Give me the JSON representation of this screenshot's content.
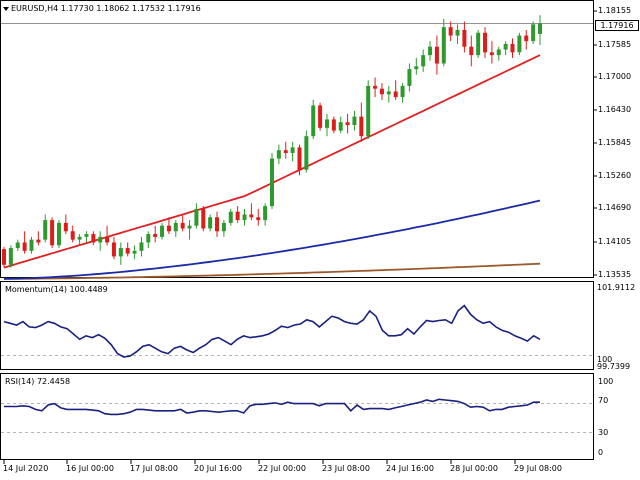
{
  "main": {
    "symbol_header": "EURUSD,H4  1.17730  1.18062  1.17532  1.17916",
    "current_price": "1.17916",
    "y_ticks": [
      "1.18155",
      "1.17585",
      "1.17000",
      "1.16430",
      "1.15845",
      "1.15260",
      "1.14690",
      "1.14105",
      "1.13535"
    ]
  },
  "momentum": {
    "header": "Momentum(14) 100.4489",
    "y_ticks": [
      "101.9112",
      "100",
      "99.7399"
    ]
  },
  "rsi": {
    "header": "RSI(14) 72.4458",
    "y_ticks": [
      "100",
      "70",
      "30",
      "0"
    ]
  },
  "x_ticks": [
    "14 Jul 2020",
    "16 Jul 00:00",
    "17 Jul 08:00",
    "20 Jul 16:00",
    "22 Jul 00:00",
    "23 Jul 08:00",
    "24 Jul 16:00",
    "28 Jul 00:00",
    "29 Jul 08:00"
  ],
  "colors": {
    "bull": "#2e9a2e",
    "bear": "#dd1c1c",
    "ma_fast": "#e02020",
    "ma_slow": "#1a2aa8",
    "ma_long": "#9c5a2c",
    "indicator": "#1a2080",
    "grid": "#888888"
  },
  "chart_data": [
    {
      "type": "candlestick",
      "title": "EURUSD,H4",
      "ylim": [
        1.134,
        1.183
      ],
      "ohlc": [
        [
          1.1388,
          1.1392,
          1.1355,
          1.136
        ],
        [
          1.136,
          1.1395,
          1.1355,
          1.139
        ],
        [
          1.139,
          1.1405,
          1.1385,
          1.14
        ],
        [
          1.14,
          1.142,
          1.138,
          1.1385
        ],
        [
          1.1385,
          1.141,
          1.138,
          1.1405
        ],
        [
          1.1405,
          1.142,
          1.1395,
          1.14
        ],
        [
          1.1405,
          1.145,
          1.14,
          1.144
        ],
        [
          1.144,
          1.1445,
          1.139,
          1.1395
        ],
        [
          1.1395,
          1.144,
          1.139,
          1.1435
        ],
        [
          1.1435,
          1.145,
          1.1415,
          1.142
        ],
        [
          1.142,
          1.143,
          1.14,
          1.1405
        ],
        [
          1.1405,
          1.1415,
          1.1395,
          1.141
        ],
        [
          1.141,
          1.142,
          1.14,
          1.1415
        ],
        [
          1.1415,
          1.142,
          1.1395,
          1.14
        ],
        [
          1.14,
          1.142,
          1.1385,
          1.141
        ],
        [
          1.141,
          1.143,
          1.1395,
          1.14
        ],
        [
          1.14,
          1.141,
          1.137,
          1.1375
        ],
        [
          1.1375,
          1.14,
          1.136,
          1.139
        ],
        [
          1.139,
          1.14,
          1.1375,
          1.138
        ],
        [
          1.138,
          1.1395,
          1.137,
          1.1385
        ],
        [
          1.1385,
          1.141,
          1.1375,
          1.14
        ],
        [
          1.14,
          1.142,
          1.139,
          1.1415
        ],
        [
          1.1415,
          1.143,
          1.14,
          1.141
        ],
        [
          1.141,
          1.1435,
          1.1405,
          1.143
        ],
        [
          1.143,
          1.1445,
          1.1415,
          1.142
        ],
        [
          1.142,
          1.144,
          1.141,
          1.1435
        ],
        [
          1.1435,
          1.145,
          1.142,
          1.1425
        ],
        [
          1.1425,
          1.144,
          1.1405,
          1.143
        ],
        [
          1.143,
          1.147,
          1.1425,
          1.146
        ],
        [
          1.146,
          1.1465,
          1.142,
          1.1425
        ],
        [
          1.1425,
          1.145,
          1.142,
          1.1445
        ],
        [
          1.1445,
          1.1455,
          1.141,
          1.142
        ],
        [
          1.142,
          1.144,
          1.141,
          1.1435
        ],
        [
          1.1435,
          1.146,
          1.143,
          1.1455
        ],
        [
          1.1455,
          1.1465,
          1.1435,
          1.144
        ],
        [
          1.144,
          1.146,
          1.143,
          1.145
        ],
        [
          1.145,
          1.147,
          1.144,
          1.1445
        ],
        [
          1.1445,
          1.146,
          1.143,
          1.144
        ],
        [
          1.144,
          1.147,
          1.143,
          1.1465
        ],
        [
          1.1465,
          1.156,
          1.146,
          1.155
        ],
        [
          1.155,
          1.1575,
          1.154,
          1.1565
        ],
        [
          1.1565,
          1.158,
          1.155,
          1.156
        ],
        [
          1.156,
          1.158,
          1.1545,
          1.157
        ],
        [
          1.157,
          1.1575,
          1.152,
          1.153
        ],
        [
          1.153,
          1.16,
          1.1525,
          1.159
        ],
        [
          1.159,
          1.1655,
          1.1585,
          1.1645
        ],
        [
          1.1645,
          1.165,
          1.16,
          1.1605
        ],
        [
          1.1605,
          1.163,
          1.159,
          1.162
        ],
        [
          1.162,
          1.1625,
          1.1595,
          1.16
        ],
        [
          1.16,
          1.1625,
          1.1595,
          1.1615
        ],
        [
          1.1615,
          1.163,
          1.1595,
          1.161
        ],
        [
          1.161,
          1.1635,
          1.16,
          1.1625
        ],
        [
          1.1625,
          1.165,
          1.158,
          1.159
        ],
        [
          1.159,
          1.169,
          1.1585,
          1.168
        ],
        [
          1.168,
          1.1695,
          1.166,
          1.1675
        ],
        [
          1.1675,
          1.1685,
          1.1655,
          1.1665
        ],
        [
          1.1665,
          1.168,
          1.165,
          1.167
        ],
        [
          1.167,
          1.169,
          1.1655,
          1.166
        ],
        [
          1.166,
          1.1685,
          1.165,
          1.168
        ],
        [
          1.168,
          1.172,
          1.167,
          1.171
        ],
        [
          1.171,
          1.173,
          1.17,
          1.1715
        ],
        [
          1.1715,
          1.1745,
          1.1705,
          1.1735
        ],
        [
          1.1735,
          1.176,
          1.1725,
          1.175
        ],
        [
          1.175,
          1.177,
          1.17,
          1.172
        ],
        [
          1.172,
          1.18,
          1.1715,
          1.1785
        ],
        [
          1.1785,
          1.1795,
          1.176,
          1.177
        ],
        [
          1.177,
          1.179,
          1.1755,
          1.178
        ],
        [
          1.178,
          1.1795,
          1.174,
          1.175
        ],
        [
          1.175,
          1.177,
          1.1715,
          1.1735
        ],
        [
          1.1735,
          1.178,
          1.173,
          1.1775
        ],
        [
          1.1775,
          1.1785,
          1.173,
          1.174
        ],
        [
          1.174,
          1.176,
          1.172,
          1.1735
        ],
        [
          1.1735,
          1.175,
          1.1725,
          1.1745
        ],
        [
          1.1745,
          1.176,
          1.1735,
          1.1755
        ],
        [
          1.1755,
          1.1765,
          1.173,
          1.174
        ],
        [
          1.174,
          1.1775,
          1.1735,
          1.177
        ],
        [
          1.177,
          1.178,
          1.1745,
          1.176
        ],
        [
          1.176,
          1.1795,
          1.1755,
          1.179
        ],
        [
          1.1773,
          1.18062,
          1.17532,
          1.17916
        ]
      ],
      "ma_fast": {
        "start": 1.1355,
        "end": 1.1735
      },
      "ma_slow": {
        "start": 1.1335,
        "end": 1.1475
      },
      "ma_long": {
        "start": 1.1335,
        "end": 1.1362
      }
    },
    {
      "type": "line",
      "title": "Momentum(14)",
      "ylim": [
        99.7,
        101.95
      ],
      "values": [
        100.95,
        100.9,
        100.85,
        100.95,
        100.8,
        100.78,
        100.85,
        100.95,
        100.9,
        100.8,
        100.75,
        100.6,
        100.45,
        100.55,
        100.5,
        100.58,
        100.48,
        100.3,
        100.05,
        99.95,
        99.98,
        100.1,
        100.25,
        100.3,
        100.2,
        100.1,
        100.05,
        100.2,
        100.25,
        100.15,
        100.08,
        100.2,
        100.3,
        100.45,
        100.5,
        100.4,
        100.3,
        100.45,
        100.55,
        100.5,
        100.52,
        100.55,
        100.6,
        100.7,
        100.82,
        100.78,
        100.85,
        100.88,
        101.0,
        100.95,
        100.8,
        100.95,
        101.1,
        101.05,
        100.95,
        100.9,
        100.88,
        101.0,
        101.25,
        101.1,
        100.7,
        100.55,
        100.55,
        100.58,
        100.75,
        100.6,
        100.8,
        100.98,
        100.95,
        100.98,
        101.0,
        100.9,
        101.25,
        101.4,
        101.15,
        101.0,
        100.9,
        100.95,
        100.8,
        100.7,
        100.65,
        100.55,
        100.48,
        100.4,
        100.55,
        100.45
      ]
    },
    {
      "type": "line",
      "title": "RSI(14)",
      "ylim": [
        0,
        100
      ],
      "levels": [
        70,
        30
      ],
      "values": [
        66,
        66,
        66,
        67,
        66,
        62,
        60,
        68,
        70,
        64,
        62,
        62,
        62,
        62,
        61,
        60,
        56,
        55,
        55,
        56,
        58,
        62,
        62,
        61,
        60,
        60,
        60,
        60,
        62,
        57,
        58,
        60,
        60,
        59,
        58,
        59,
        60,
        60,
        57,
        67,
        69,
        69,
        70,
        71,
        69,
        72,
        70,
        70,
        70,
        70,
        67,
        70,
        70,
        70,
        70,
        60,
        68,
        62,
        63,
        63,
        63,
        62,
        64,
        66,
        68,
        70,
        72,
        75,
        73,
        76,
        75,
        74,
        73,
        70,
        65,
        66,
        65,
        60,
        62,
        62,
        65,
        66,
        67,
        68,
        72,
        72
      ]
    }
  ]
}
